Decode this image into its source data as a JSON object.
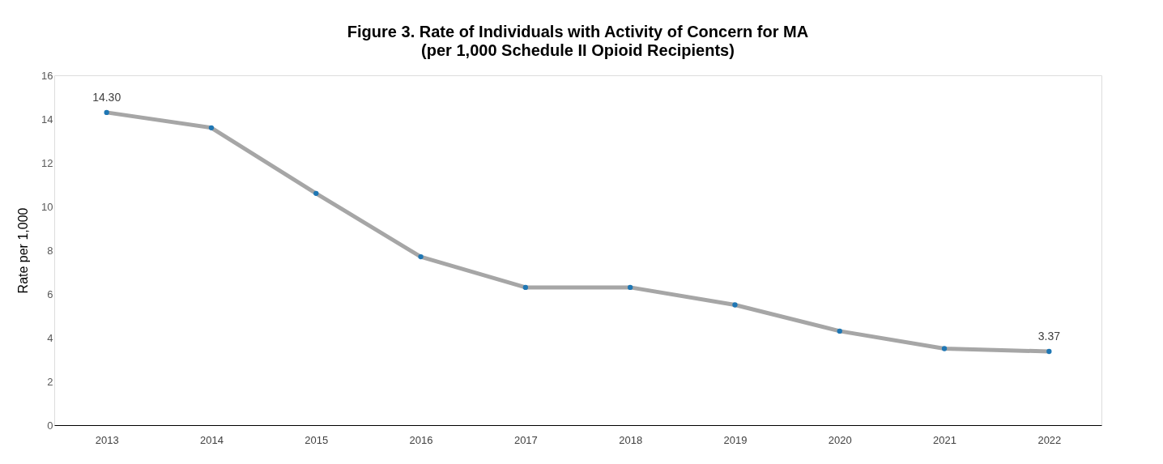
{
  "chart_data": {
    "type": "line",
    "title": "Figure 3. Rate of Individuals with Activity of Concern for MA",
    "subtitle": "(per 1,000 Schedule II Opioid Recipients)",
    "ylabel": "Rate per 1,000",
    "categories": [
      "2013",
      "2014",
      "2015",
      "2016",
      "2017",
      "2018",
      "2019",
      "2020",
      "2021",
      "2022"
    ],
    "series": [
      {
        "color": "#a6a6a6",
        "values": [
          14.3,
          13.6,
          10.6,
          7.7,
          6.3,
          6.3,
          5.5,
          4.3,
          3.5,
          3.37
        ],
        "value_labels": [
          "14.30",
          null,
          null,
          null,
          null,
          null,
          null,
          null,
          null,
          "3.37"
        ]
      }
    ],
    "ylim": [
      0,
      16
    ],
    "yticks": [
      0,
      2,
      4,
      6,
      8,
      10,
      12,
      14,
      16
    ],
    "grid": false,
    "marker": "circle"
  }
}
